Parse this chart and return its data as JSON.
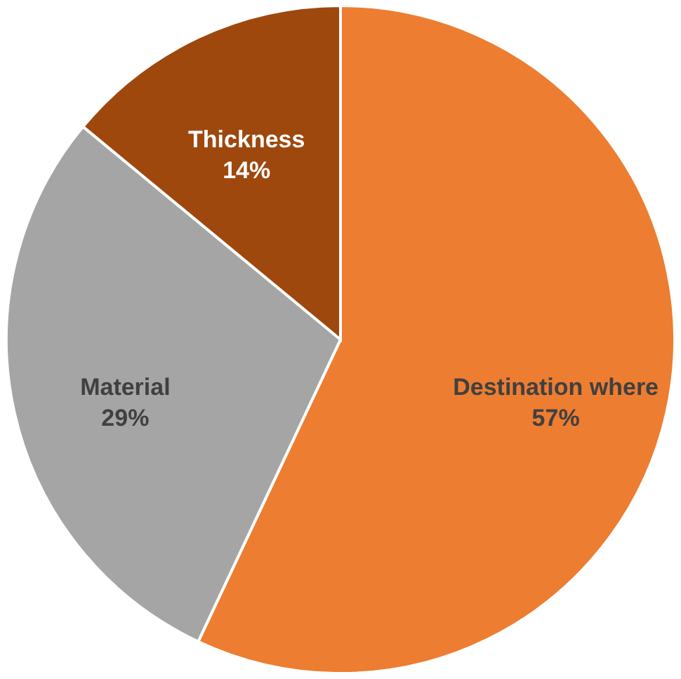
{
  "chart_data": {
    "type": "pie",
    "categories": [
      "Destination where",
      "Material",
      "Thickness"
    ],
    "values": [
      57,
      29,
      14
    ],
    "colors": [
      "#ed7d31",
      "#a5a5a5",
      "#9e480e"
    ],
    "value_labels": [
      "57%",
      "29%",
      "14%"
    ],
    "legend": false
  }
}
